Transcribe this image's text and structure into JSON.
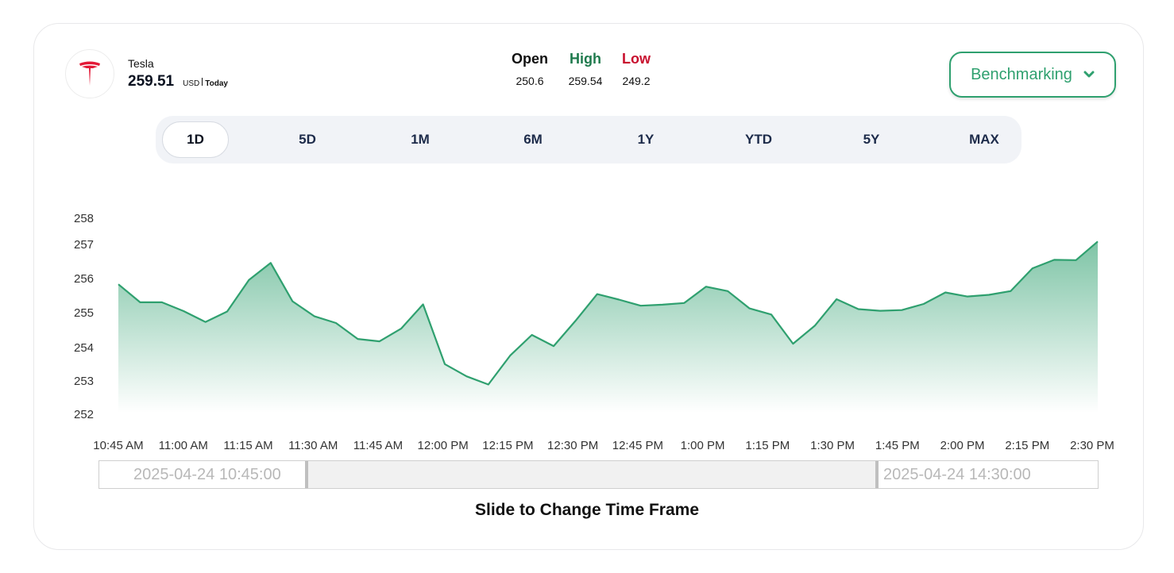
{
  "stock": {
    "name": "Tesla",
    "price": "259.51",
    "currency": "USD",
    "period": "Today",
    "logo_icon": "tesla-logo-icon",
    "logo_color": "#e31937"
  },
  "ohl": {
    "open_label": "Open",
    "open_value": "250.6",
    "high_label": "High",
    "high_value": "259.54",
    "low_label": "Low",
    "low_value": "249.2",
    "colors": {
      "open": "#111111",
      "high": "#1f7a4d",
      "low": "#c8102e"
    }
  },
  "benchmark": {
    "label": "Benchmarking",
    "icon": "chevron-down-icon"
  },
  "tabs": [
    {
      "label": "1D",
      "active": true
    },
    {
      "label": "5D",
      "active": false
    },
    {
      "label": "1M",
      "active": false
    },
    {
      "label": "6M",
      "active": false
    },
    {
      "label": "1Y",
      "active": false
    },
    {
      "label": "YTD",
      "active": false
    },
    {
      "label": "5Y",
      "active": false
    },
    {
      "label": "MAX",
      "active": false
    }
  ],
  "chart_data": {
    "type": "area",
    "title": "",
    "xlabel": "",
    "ylabel": "",
    "color": "#2fa06f",
    "x_start": "10:45 AM",
    "x_end": "2:30 PM",
    "x_ticks": [
      "10:45 AM",
      "11:00 AM",
      "11:15 AM",
      "11:30 AM",
      "11:45 AM",
      "12:00 PM",
      "12:15 PM",
      "12:30 PM",
      "12:45 PM",
      "1:00 PM",
      "1:15 PM",
      "1:30 PM",
      "1:45 PM",
      "2:00 PM",
      "2:15 PM",
      "2:30 PM"
    ],
    "y_ticks": [
      "252",
      "253",
      "254",
      "255",
      "256",
      "257",
      "258"
    ],
    "ylim": [
      252,
      258
    ],
    "values": [
      255.78,
      255.25,
      255.25,
      254.99,
      254.67,
      254.98,
      255.91,
      256.41,
      255.28,
      254.84,
      254.64,
      254.17,
      254.1,
      254.48,
      255.19,
      253.43,
      253.07,
      252.83,
      253.68,
      254.29,
      253.96,
      254.7,
      255.49,
      255.33,
      255.15,
      255.18,
      255.23,
      255.71,
      255.58,
      255.07,
      254.89,
      254.03,
      254.56,
      255.34,
      255.05,
      255.0,
      255.02,
      255.2,
      255.54,
      255.42,
      255.47,
      255.58,
      256.25,
      256.5,
      256.49,
      257.04
    ],
    "grid": false,
    "legend": "none"
  },
  "slider": {
    "start_label": "2025-04-24 10:45:00",
    "end_label": "2025-04-24 14:30:00",
    "caption": "Slide to Change Time Frame"
  }
}
